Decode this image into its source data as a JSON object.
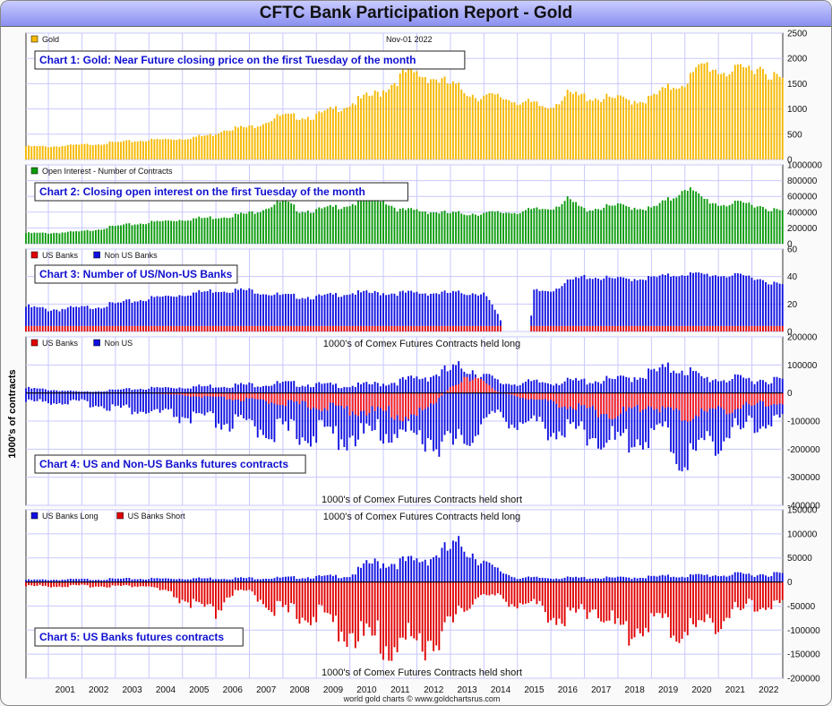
{
  "page": {
    "title": "CFTC Bank Participation Report - Gold",
    "y_axis_label": "1000's of contracts",
    "footer": "world gold charts © www.goldchartsrus.com",
    "date_stamp": "Nov-01  2022",
    "years": [
      "2001",
      "2002",
      "2003",
      "2004",
      "2005",
      "2006",
      "2007",
      "2008",
      "2009",
      "2010",
      "2011",
      "2012",
      "2013",
      "2014",
      "2015",
      "2016",
      "2017",
      "2018",
      "2019",
      "2020",
      "2021",
      "2022"
    ]
  },
  "chart_data": [
    {
      "type": "bar",
      "title": "Chart 1: Gold: Near Future closing price on the first Tuesday of the month",
      "legend": [
        {
          "name": "Gold",
          "color": "#f5b800"
        }
      ],
      "ylim": [
        0,
        2500
      ],
      "yticks": [
        "0",
        "500",
        "1000",
        "1500",
        "2000",
        "2500"
      ],
      "series_color": "#f5b800",
      "yearly_levels": [
        [
          2000.33,
          270
        ],
        [
          2001,
          265
        ],
        [
          2002,
          300
        ],
        [
          2003,
          350
        ],
        [
          2004,
          400
        ],
        [
          2005,
          430
        ],
        [
          2005.9,
          510
        ],
        [
          2006.3,
          640
        ],
        [
          2007,
          660
        ],
        [
          2007.9,
          890
        ],
        [
          2008.9,
          880
        ],
        [
          2009.9,
          1120
        ],
        [
          2010.9,
          1380
        ],
        [
          2011.7,
          1800
        ],
        [
          2012.5,
          1680
        ],
        [
          2013.3,
          1460
        ],
        [
          2013.8,
          1300
        ],
        [
          2014.5,
          1280
        ],
        [
          2015.9,
          1070
        ],
        [
          2016.5,
          1330
        ],
        [
          2017.5,
          1260
        ],
        [
          2018.5,
          1220
        ],
        [
          2018.9,
          1230
        ],
        [
          2019.6,
          1500
        ],
        [
          2020.0,
          1590
        ],
        [
          2020.6,
          1970
        ],
        [
          2021.0,
          1830
        ],
        [
          2021.5,
          1800
        ],
        [
          2022.2,
          1940
        ],
        [
          2022.8,
          1650
        ]
      ]
    },
    {
      "type": "bar",
      "title": "Chart 2: Closing open interest on the first Tuesday of the month",
      "legend": [
        {
          "name": "Open Interest - Number of Contracts",
          "color": "#0a9a0a"
        }
      ],
      "ylim": [
        0,
        1000000
      ],
      "yticks": [
        "0",
        "200000",
        "400000",
        "600000",
        "800000",
        "1000000"
      ],
      "series_color": "#0a9a0a",
      "yearly_levels": [
        [
          2000.33,
          140000
        ],
        [
          2001,
          140000
        ],
        [
          2002,
          160000
        ],
        [
          2003,
          230000
        ],
        [
          2004,
          280000
        ],
        [
          2005,
          320000
        ],
        [
          2006,
          350000
        ],
        [
          2007,
          400000
        ],
        [
          2008,
          560000
        ],
        [
          2008.5,
          440000
        ],
        [
          2009,
          440000
        ],
        [
          2010,
          520000
        ],
        [
          2010.9,
          600000
        ],
        [
          2011.5,
          440000
        ],
        [
          2012,
          440000
        ],
        [
          2013,
          400000
        ],
        [
          2014,
          400000
        ],
        [
          2015,
          420000
        ],
        [
          2016,
          470000
        ],
        [
          2016.5,
          580000
        ],
        [
          2017,
          450000
        ],
        [
          2018,
          500000
        ],
        [
          2019,
          460000
        ],
        [
          2019.7,
          620000
        ],
        [
          2020,
          760000
        ],
        [
          2020.5,
          600000
        ],
        [
          2021,
          520000
        ],
        [
          2022,
          530000
        ],
        [
          2022.8,
          430000
        ]
      ]
    },
    {
      "type": "bar",
      "title": "Chart 3: Number of US/Non-US Banks",
      "legend": [
        {
          "name": "US Banks",
          "color": "#e00000"
        },
        {
          "name": "Non US Banks",
          "color": "#1010e0"
        }
      ],
      "ylim": [
        0,
        60
      ],
      "yticks": [
        "0",
        "20",
        "40",
        "60"
      ],
      "series": [
        {
          "name": "US Banks",
          "color": "#e00000",
          "level": 4
        },
        {
          "name": "Non US Banks",
          "color": "#1010e0",
          "yearly_levels": [
            [
              2000.33,
              14
            ],
            [
              2001,
              12
            ],
            [
              2002,
              13
            ],
            [
              2003,
              16
            ],
            [
              2004,
              20
            ],
            [
              2005,
              23
            ],
            [
              2006,
              26
            ],
            [
              2007,
              26
            ],
            [
              2008,
              22
            ],
            [
              2009,
              21
            ],
            [
              2010,
              24
            ],
            [
              2011,
              24
            ],
            [
              2012,
              24
            ],
            [
              2013,
              24
            ],
            [
              2014,
              24
            ],
            [
              2014.6,
              0
            ],
            [
              2015.4,
              0
            ],
            [
              2015.45,
              25
            ],
            [
              2016,
              26
            ],
            [
              2016.5,
              32
            ],
            [
              2017,
              36
            ],
            [
              2018,
              34
            ],
            [
              2019,
              35
            ],
            [
              2020,
              38
            ],
            [
              2021,
              37
            ],
            [
              2022,
              36
            ],
            [
              2022.8,
              30
            ]
          ]
        }
      ]
    },
    {
      "type": "bar",
      "title": "Chart 4: US and Non-US Banks futures contracts",
      "legend": [
        {
          "name": "US Banks",
          "color": "#e00000"
        },
        {
          "name": "Non US",
          "color": "#1010e0"
        }
      ],
      "top_note": "1000's of Comex Futures Contracts held long",
      "bottom_note": "1000's of Comex Futures Contracts held short",
      "ylim": [
        -400000,
        200000
      ],
      "yticks": [
        "-400000",
        "-300000",
        "-200000",
        "-100000",
        "0",
        "100000",
        "200000"
      ],
      "series_long": [
        [
          2000.33,
          20000
        ],
        [
          2002,
          5000
        ],
        [
          2004,
          20000
        ],
        [
          2006,
          30000
        ],
        [
          2008,
          40000
        ],
        [
          2010,
          30000
        ],
        [
          2011,
          40000
        ],
        [
          2012,
          60000
        ],
        [
          2013.5,
          110000
        ],
        [
          2014.5,
          40000
        ],
        [
          2016,
          45000
        ],
        [
          2018,
          55000
        ],
        [
          2019.9,
          110000
        ],
        [
          2020.5,
          60000
        ],
        [
          2022.8,
          55000
        ]
      ],
      "series_short": [
        [
          2000.33,
          -35000
        ],
        [
          2002,
          -40000
        ],
        [
          2004,
          -80000
        ],
        [
          2006,
          -120000
        ],
        [
          2008,
          -160000
        ],
        [
          2010,
          -180000
        ],
        [
          2011.3,
          -160000
        ],
        [
          2012.4,
          -190000
        ],
        [
          2013.2,
          -230000
        ],
        [
          2014.2,
          -90000
        ],
        [
          2015,
          -120000
        ],
        [
          2016,
          -150000
        ],
        [
          2017,
          -160000
        ],
        [
          2018,
          -210000
        ],
        [
          2019.4,
          -160000
        ],
        [
          2020,
          -300000
        ],
        [
          2020.5,
          -220000
        ],
        [
          2021.5,
          -160000
        ],
        [
          2022.8,
          -110000
        ]
      ],
      "us_net": [
        [
          2000.33,
          0
        ],
        [
          2004,
          0
        ],
        [
          2006,
          -20000
        ],
        [
          2008,
          -40000
        ],
        [
          2010,
          -70000
        ],
        [
          2011,
          -80000
        ],
        [
          2012,
          -100000
        ],
        [
          2013.5,
          80000
        ],
        [
          2014.5,
          0
        ],
        [
          2016,
          -40000
        ],
        [
          2018,
          -90000
        ],
        [
          2019,
          -50000
        ],
        [
          2020,
          -100000
        ],
        [
          2021,
          -70000
        ],
        [
          2022.8,
          -40000
        ]
      ]
    },
    {
      "type": "bar",
      "title": "Chart 5: US Banks futures contracts",
      "legend": [
        {
          "name": "US Banks Long",
          "color": "#1010e0"
        },
        {
          "name": "US Banks Short",
          "color": "#e00000"
        }
      ],
      "top_note": "1000's of Comex Futures Contracts held long",
      "bottom_note": "1000's of Comex Futures Contracts held short",
      "ylim": [
        -200000,
        150000
      ],
      "yticks": [
        "-200000",
        "-150000",
        "-100000",
        "-50000",
        "0",
        "50000",
        "100000",
        "150000"
      ],
      "series_long": [
        [
          2000.33,
          5000
        ],
        [
          2004,
          8000
        ],
        [
          2008,
          10000
        ],
        [
          2010,
          15000
        ],
        [
          2010.6,
          45000
        ],
        [
          2012,
          50000
        ],
        [
          2013.4,
          90000
        ],
        [
          2014.2,
          35000
        ],
        [
          2015,
          10000
        ],
        [
          2018,
          10000
        ],
        [
          2020,
          15000
        ],
        [
          2022.8,
          20000
        ]
      ],
      "series_short": [
        [
          2000.33,
          -10000
        ],
        [
          2004,
          -10000
        ],
        [
          2005.2,
          -50000
        ],
        [
          2005.9,
          -85000
        ],
        [
          2006.4,
          -30000
        ],
        [
          2007,
          -25000
        ],
        [
          2008,
          -75000
        ],
        [
          2009,
          -80000
        ],
        [
          2010.2,
          -130000
        ],
        [
          2011.1,
          -150000
        ],
        [
          2012.3,
          -145000
        ],
        [
          2013,
          -110000
        ],
        [
          2013.8,
          -30000
        ],
        [
          2014.5,
          -40000
        ],
        [
          2015.5,
          -60000
        ],
        [
          2016.4,
          -90000
        ],
        [
          2017.3,
          -60000
        ],
        [
          2018.2,
          -130000
        ],
        [
          2019,
          -90000
        ],
        [
          2019.8,
          -120000
        ],
        [
          2020.5,
          -110000
        ],
        [
          2021.3,
          -80000
        ],
        [
          2022,
          -60000
        ],
        [
          2022.8,
          -55000
        ]
      ]
    }
  ]
}
